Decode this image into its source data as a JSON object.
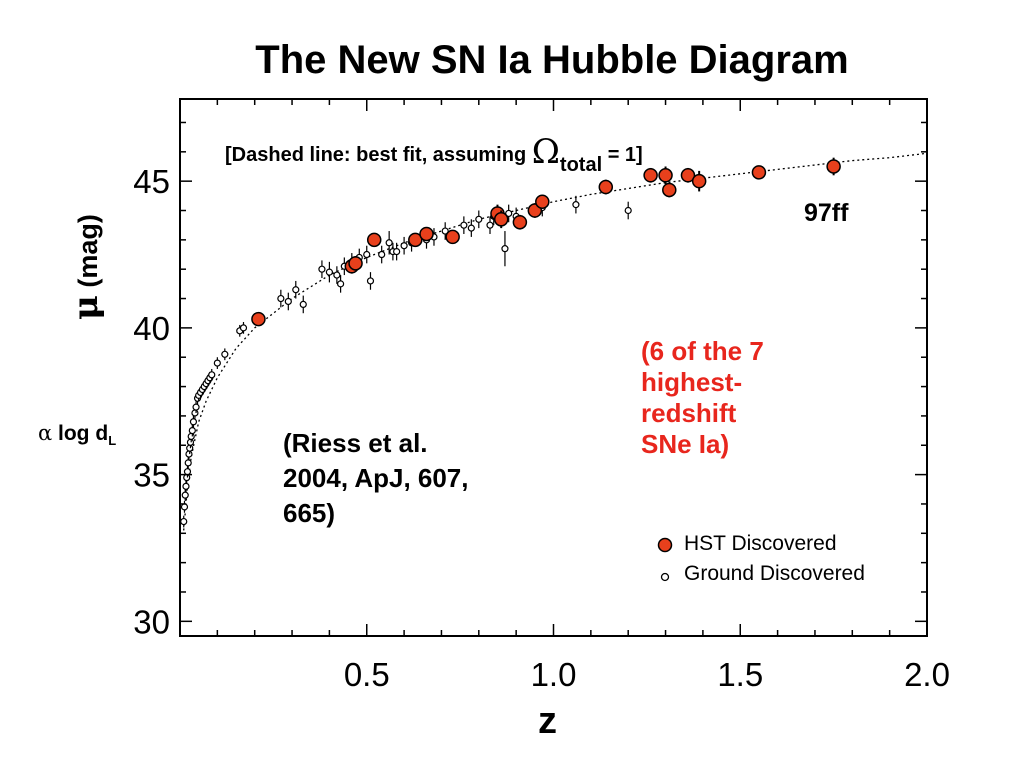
{
  "title": "The New SN Ia Hubble Diagram",
  "annotations": {
    "dashed_note_prefix": "[Dashed line: best fit, assuming ",
    "dashed_note_omega": "Ω",
    "dashed_note_sub": "total",
    "dashed_note_suffix": " = 1]",
    "label_97ff": "97ff",
    "red_note_lines": [
      "(6 of the 7",
      "highest-",
      "redshift",
      "SNe Ia)"
    ],
    "citation_lines": [
      "(Riess et al.",
      "2004, ApJ, 607,",
      "665)"
    ]
  },
  "axes": {
    "ylabel_symbol": "μ",
    "ylabel_unit": "(mag)",
    "ylabel_prop_alpha": "α",
    "ylabel_prop_text": " log d",
    "ylabel_prop_sub": "L",
    "xlabel": "z"
  },
  "colors": {
    "hst_fill": "#e8401c",
    "axis": "#000000",
    "red_note": "#e8261d"
  },
  "chart_data": {
    "type": "scatter",
    "title": "The New SN Ia Hubble Diagram",
    "xlabel": "z",
    "ylabel": "μ (mag)",
    "xlim": [
      0,
      2.0
    ],
    "ylim": [
      29.5,
      47.8
    ],
    "x_ticks": [
      0.5,
      1.0,
      1.5,
      2.0
    ],
    "x_tick_labels": [
      "0.5",
      "1.0",
      "1.5",
      "2.0"
    ],
    "y_ticks": [
      30,
      35,
      40,
      45
    ],
    "y_tick_labels": [
      "30",
      "35",
      "40",
      "45"
    ],
    "legend_position": "bottom-right",
    "series": [
      {
        "name": "HST Discovered",
        "marker": "filled-circle",
        "color": "#e8401c",
        "x": [
          0.21,
          0.46,
          0.47,
          0.52,
          0.63,
          0.66,
          0.73,
          0.85,
          0.86,
          0.91,
          0.95,
          0.97,
          1.14,
          1.26,
          1.3,
          1.31,
          1.36,
          1.39,
          1.55,
          1.75
        ],
        "y": [
          40.3,
          42.1,
          42.2,
          43.0,
          43.0,
          43.2,
          43.1,
          43.9,
          43.7,
          43.6,
          44.0,
          44.3,
          44.8,
          45.2,
          45.2,
          44.7,
          45.2,
          45.0,
          45.3,
          45.5
        ],
        "yerr": [
          0.2,
          0.25,
          0.25,
          0.2,
          0.2,
          0.2,
          0.2,
          0.3,
          0.3,
          0.25,
          0.25,
          0.2,
          0.25,
          0.25,
          0.3,
          0.25,
          0.25,
          0.35,
          0.2,
          0.3
        ]
      },
      {
        "name": "Ground Discovered",
        "marker": "open-circle",
        "x": [
          0.01,
          0.012,
          0.014,
          0.016,
          0.018,
          0.02,
          0.022,
          0.024,
          0.026,
          0.028,
          0.03,
          0.033,
          0.036,
          0.04,
          0.043,
          0.047,
          0.05,
          0.055,
          0.06,
          0.065,
          0.07,
          0.075,
          0.08,
          0.085,
          0.1,
          0.12,
          0.16,
          0.17,
          0.27,
          0.29,
          0.31,
          0.33,
          0.38,
          0.4,
          0.42,
          0.43,
          0.44,
          0.46,
          0.48,
          0.5,
          0.51,
          0.54,
          0.56,
          0.57,
          0.58,
          0.6,
          0.62,
          0.66,
          0.68,
          0.71,
          0.76,
          0.78,
          0.8,
          0.83,
          0.84,
          0.87,
          0.88,
          0.9,
          0.97,
          1.06,
          1.2
        ],
        "y": [
          33.4,
          33.9,
          34.3,
          34.6,
          34.9,
          35.1,
          35.4,
          35.7,
          35.9,
          36.1,
          36.3,
          36.5,
          36.8,
          37.1,
          37.3,
          37.6,
          37.7,
          37.8,
          37.9,
          38.0,
          38.1,
          38.2,
          38.3,
          38.4,
          38.8,
          39.1,
          39.9,
          40.0,
          41.0,
          40.9,
          41.3,
          40.8,
          42.0,
          41.9,
          41.8,
          41.5,
          42.1,
          42.2,
          42.4,
          42.5,
          41.6,
          42.5,
          42.9,
          42.6,
          42.6,
          42.8,
          42.9,
          43.0,
          43.1,
          43.3,
          43.5,
          43.4,
          43.7,
          43.5,
          43.8,
          42.7,
          43.9,
          43.8,
          44.1,
          44.2,
          44.0
        ],
        "yerr": [
          0.2,
          0.2,
          0.2,
          0.2,
          0.2,
          0.2,
          0.2,
          0.2,
          0.2,
          0.2,
          0.2,
          0.2,
          0.2,
          0.2,
          0.2,
          0.2,
          0.2,
          0.2,
          0.2,
          0.2,
          0.2,
          0.2,
          0.2,
          0.2,
          0.2,
          0.2,
          0.2,
          0.2,
          0.3,
          0.3,
          0.3,
          0.3,
          0.3,
          0.35,
          0.3,
          0.3,
          0.3,
          0.35,
          0.3,
          0.3,
          0.3,
          0.3,
          0.4,
          0.3,
          0.3,
          0.3,
          0.3,
          0.3,
          0.3,
          0.3,
          0.3,
          0.3,
          0.3,
          0.3,
          0.3,
          0.6,
          0.3,
          0.3,
          0.3,
          0.3,
          0.3
        ]
      }
    ],
    "fit_line": {
      "style": "dashed",
      "x": [
        0.01,
        0.02,
        0.03,
        0.05,
        0.07,
        0.1,
        0.15,
        0.2,
        0.3,
        0.4,
        0.5,
        0.6,
        0.7,
        0.8,
        0.9,
        1.0,
        1.1,
        1.2,
        1.3,
        1.4,
        1.5,
        1.6,
        1.7,
        1.8,
        1.9,
        2.0
      ],
      "y": [
        33.1,
        34.6,
        35.6,
        36.8,
        37.5,
        38.3,
        39.3,
        40.0,
        41.0,
        41.8,
        42.4,
        42.9,
        43.3,
        43.7,
        44.0,
        44.3,
        44.55,
        44.75,
        44.95,
        45.1,
        45.25,
        45.4,
        45.55,
        45.7,
        45.8,
        45.95
      ]
    }
  }
}
